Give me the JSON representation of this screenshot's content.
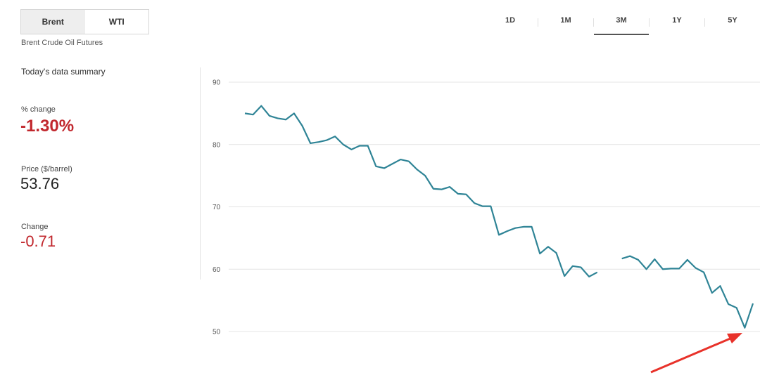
{
  "toggle": {
    "options": [
      "Brent",
      "WTI"
    ],
    "active": "Brent"
  },
  "subtitle": "Brent Crude Oil Futures",
  "summary": {
    "title": "Today's data summary",
    "pct_change_label": "% change",
    "pct_change_value": "-1.30%",
    "price_label": "Price ($/barrel)",
    "price_value": "53.76",
    "change_label": "Change",
    "change_value": "-0.71"
  },
  "ranges": [
    "1D",
    "1M",
    "3M",
    "1Y",
    "5Y"
  ],
  "active_range": "3M",
  "colors": {
    "line": "#2f8496",
    "negative": "#c1272d",
    "arrow": "#e8322a"
  },
  "chart_data": {
    "type": "line",
    "title": "",
    "xlabel": "",
    "ylabel": "",
    "ylim": [
      50,
      90
    ],
    "yticks": [
      90,
      80,
      70,
      60,
      50
    ],
    "grid": true,
    "annotation": "red arrow pointing at the latest low",
    "series": [
      {
        "values": [
          85.0,
          84.8,
          86.2,
          84.6,
          84.2,
          84.0,
          85.0,
          83.0,
          80.2,
          80.4,
          80.7,
          81.3,
          80.0,
          79.2,
          79.8,
          79.8,
          76.5,
          76.2,
          76.9,
          77.6,
          77.3,
          76.0,
          75.0,
          72.9,
          72.8,
          73.2,
          72.1,
          72.0,
          70.6,
          70.1,
          70.1,
          65.5,
          66.1,
          66.6,
          66.8,
          66.8,
          62.5,
          63.6,
          62.6,
          58.9,
          60.5,
          60.3,
          58.8,
          59.5,
          null,
          null,
          61.7,
          62.1,
          61.5,
          60.0,
          61.6,
          60.0,
          60.1,
          60.1,
          61.5,
          60.2,
          59.5,
          56.2,
          57.3,
          54.4,
          53.8,
          50.6,
          54.5
        ]
      }
    ]
  }
}
